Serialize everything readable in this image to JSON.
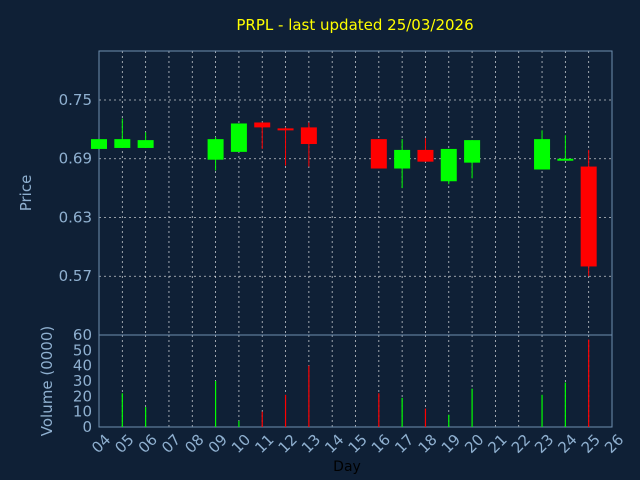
{
  "chart_data": [
    {
      "type": "candlestick",
      "title": "PRPL - last updated 25/03/2026",
      "ylabel": "Price",
      "ylim": [
        0.51,
        0.8
      ],
      "yticks": [
        "0.75",
        "0.69",
        "0.63",
        "0.57"
      ],
      "ytick_values": [
        0.75,
        0.69,
        0.63,
        0.57
      ],
      "grid": true,
      "colors": {
        "up": "#00ff00",
        "down": "#ff0000",
        "grid": "#ffffff",
        "title": "#ffff00",
        "axis_text": "#8fb0d0",
        "background": "#0f2036"
      },
      "candles": [
        {
          "day": 4,
          "open": 0.7,
          "close": 0.71,
          "high": 0.71,
          "low": 0.7
        },
        {
          "day": 5,
          "open": 0.701,
          "close": 0.71,
          "high": 0.731,
          "low": 0.701
        },
        {
          "day": 6,
          "open": 0.701,
          "close": 0.709,
          "high": 0.717,
          "low": 0.701
        },
        {
          "day": 9,
          "open": 0.689,
          "close": 0.71,
          "high": 0.712,
          "low": 0.678
        },
        {
          "day": 10,
          "open": 0.697,
          "close": 0.726,
          "high": 0.726,
          "low": 0.697
        },
        {
          "day": 11,
          "open": 0.727,
          "close": 0.722,
          "high": 0.727,
          "low": 0.7
        },
        {
          "day": 12,
          "open": 0.721,
          "close": 0.72,
          "high": 0.722,
          "low": 0.683
        },
        {
          "day": 13,
          "open": 0.722,
          "close": 0.705,
          "high": 0.727,
          "low": 0.682
        },
        {
          "day": 16,
          "open": 0.71,
          "close": 0.68,
          "high": 0.71,
          "low": 0.68
        },
        {
          "day": 17,
          "open": 0.68,
          "close": 0.699,
          "high": 0.71,
          "low": 0.66
        },
        {
          "day": 18,
          "open": 0.699,
          "close": 0.687,
          "high": 0.711,
          "low": 0.687
        },
        {
          "day": 19,
          "open": 0.667,
          "close": 0.7,
          "high": 0.7,
          "low": 0.664
        },
        {
          "day": 20,
          "open": 0.686,
          "close": 0.709,
          "high": 0.709,
          "low": 0.67
        },
        {
          "day": 23,
          "open": 0.679,
          "close": 0.71,
          "high": 0.719,
          "low": 0.679
        },
        {
          "day": 24,
          "open": 0.689,
          "close": 0.69,
          "high": 0.714,
          "low": 0.689
        },
        {
          "day": 25,
          "open": 0.682,
          "close": 0.58,
          "high": 0.699,
          "low": 0.57
        }
      ],
      "xlim": [
        4,
        26
      ]
    },
    {
      "type": "bar",
      "ylabel": "Volume (0000)",
      "xlabel": "Day",
      "ylim": [
        0,
        60
      ],
      "yticks": [
        "60",
        "50",
        "40",
        "30",
        "20",
        "10",
        "0"
      ],
      "ytick_values": [
        60,
        50,
        40,
        30,
        20,
        10,
        0
      ],
      "xticks": [
        "04",
        "05",
        "06",
        "07",
        "08",
        "09",
        "10",
        "11",
        "12",
        "13",
        "14",
        "15",
        "16",
        "17",
        "18",
        "19",
        "20",
        "21",
        "22",
        "23",
        "24",
        "25",
        "26"
      ],
      "xtick_values": [
        4,
        5,
        6,
        7,
        8,
        9,
        10,
        11,
        12,
        13,
        14,
        15,
        16,
        17,
        18,
        19,
        20,
        21,
        22,
        23,
        24,
        25,
        26
      ],
      "xlim": [
        4,
        26
      ],
      "bars": [
        {
          "day": 5,
          "value": 22,
          "direction": "up"
        },
        {
          "day": 6,
          "value": 13,
          "direction": "up"
        },
        {
          "day": 9,
          "value": 30,
          "direction": "up"
        },
        {
          "day": 10,
          "value": 4,
          "direction": "up"
        },
        {
          "day": 11,
          "value": 10,
          "direction": "down"
        },
        {
          "day": 12,
          "value": 21,
          "direction": "down"
        },
        {
          "day": 13,
          "value": 40,
          "direction": "down"
        },
        {
          "day": 16,
          "value": 22,
          "direction": "down"
        },
        {
          "day": 17,
          "value": 19,
          "direction": "up"
        },
        {
          "day": 18,
          "value": 12,
          "direction": "down"
        },
        {
          "day": 19,
          "value": 8,
          "direction": "up"
        },
        {
          "day": 20,
          "value": 25,
          "direction": "up"
        },
        {
          "day": 23,
          "value": 21,
          "direction": "up"
        },
        {
          "day": 24,
          "value": 29,
          "direction": "up"
        },
        {
          "day": 25,
          "value": 57,
          "direction": "down"
        }
      ]
    }
  ]
}
